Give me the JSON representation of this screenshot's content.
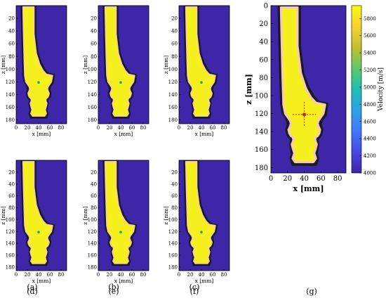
{
  "figure": {
    "colorbar": {
      "label": "Velocity [m/s]",
      "min": 4000,
      "max": 5950,
      "ticks": [
        4000,
        4200,
        4400,
        4600,
        4800,
        5000,
        5200,
        5400,
        5600,
        5800
      ],
      "stops": [
        "#3d26a8",
        "#4748e5",
        "#3f79fb",
        "#2da3e6",
        "#1ebfb6",
        "#5bc867",
        "#c1c02c",
        "#f7d230",
        "#f9fb0e"
      ]
    },
    "colors": {
      "background": "#3d26a8",
      "body": "#f6f01e",
      "edge": "#f7c6c6",
      "outer": "#1b1b1b",
      "marker": "#1ea35a",
      "crosshair": "#ff0000"
    }
  },
  "chart_data": [
    {
      "type": "heatmap",
      "panel_label": "(a)",
      "xlabel": "x [mm]",
      "ylabel": "z [mm]",
      "xlim": [
        0,
        90
      ],
      "ylim": [
        186,
        0
      ],
      "xticks": [
        0,
        20,
        40,
        60,
        80
      ],
      "yticks": [
        20,
        40,
        60,
        80,
        100,
        120,
        140,
        160,
        180
      ],
      "marker": {
        "x": 40,
        "z": 121
      }
    },
    {
      "type": "heatmap",
      "panel_label": "(b)",
      "xlabel": "x [mm]",
      "ylabel": "z [mm]",
      "xlim": [
        0,
        90
      ],
      "ylim": [
        186,
        0
      ],
      "xticks": [
        0,
        20,
        40,
        60,
        80
      ],
      "yticks": [
        20,
        40,
        60,
        80,
        100,
        120,
        140,
        160,
        180
      ],
      "marker": {
        "x": 40,
        "z": 121
      }
    },
    {
      "type": "heatmap",
      "panel_label": "(c)",
      "xlabel": "x [mm]",
      "ylabel": "z [mm]",
      "xlim": [
        0,
        90
      ],
      "ylim": [
        186,
        0
      ],
      "xticks": [
        0,
        20,
        40,
        60,
        80
      ],
      "yticks": [
        20,
        40,
        60,
        80,
        100,
        120,
        140,
        160,
        180
      ],
      "marker": {
        "x": 40,
        "z": 121
      }
    },
    {
      "type": "heatmap",
      "panel_label": "(d)",
      "xlabel": "x [mm]",
      "ylabel": "z [mm]",
      "xlim": [
        0,
        90
      ],
      "ylim": [
        186,
        0
      ],
      "xticks": [
        0,
        20,
        40,
        60,
        80
      ],
      "yticks": [
        20,
        40,
        60,
        80,
        100,
        120,
        140,
        160,
        180
      ],
      "marker": {
        "x": 40,
        "z": 121
      }
    },
    {
      "type": "heatmap",
      "panel_label": "(e)",
      "xlabel": "x [mm]",
      "ylabel": "z [mm]",
      "xlim": [
        0,
        90
      ],
      "ylim": [
        186,
        0
      ],
      "xticks": [
        0,
        20,
        40,
        60,
        80
      ],
      "yticks": [
        20,
        40,
        60,
        80,
        100,
        120,
        140,
        160,
        180
      ],
      "marker": {
        "x": 40,
        "z": 121
      }
    },
    {
      "type": "heatmap",
      "panel_label": "(f)",
      "xlabel": "x [mm]",
      "ylabel": "z [mm]",
      "xlim": [
        0,
        90
      ],
      "ylim": [
        186,
        0
      ],
      "xticks": [
        0,
        20,
        40,
        60,
        80
      ],
      "yticks": [
        20,
        40,
        60,
        80,
        100,
        120,
        140,
        160,
        180
      ],
      "marker": {
        "x": 40,
        "z": 121
      }
    },
    {
      "type": "heatmap",
      "panel_label": "(g)",
      "xlabel": "x [mm]",
      "ylabel": "z [mm]",
      "xlim": [
        0,
        90
      ],
      "ylim": [
        186,
        0
      ],
      "xticks": [
        0,
        20,
        40,
        60,
        80
      ],
      "yticks": [
        0,
        20,
        40,
        60,
        80,
        100,
        120,
        140,
        160,
        180
      ],
      "marker": {
        "x": 40,
        "z": 121
      },
      "crosshair": true
    }
  ]
}
